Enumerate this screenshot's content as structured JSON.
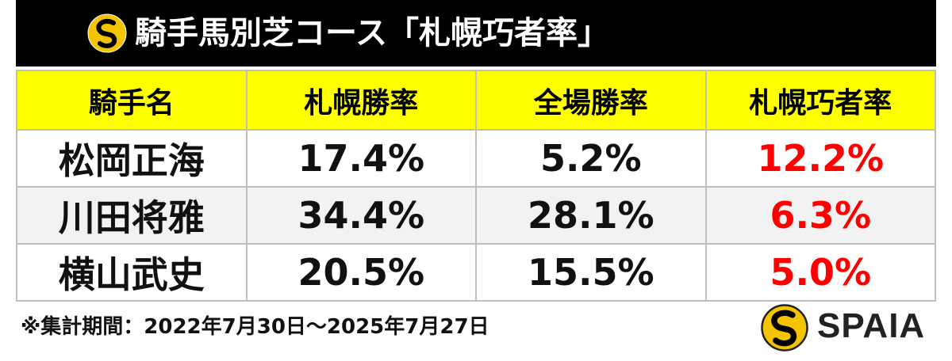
{
  "header": {
    "title": "騎手馬別芝コース「札幌巧者率」"
  },
  "table": {
    "columns": [
      "騎手名",
      "札幌勝率",
      "全場勝率",
      "札幌巧者率"
    ],
    "rows": [
      [
        "松岡正海",
        "17.4%",
        "5.2%",
        "12.2%"
      ],
      [
        "川田将雅",
        "34.4%",
        "28.1%",
        "6.3%"
      ],
      [
        "横山武史",
        "20.5%",
        "15.5%",
        "5.0%"
      ]
    ]
  },
  "footer": {
    "note": "※集計期間：2022年7月30日～2025年7月27日",
    "brand": "SPAIA"
  }
}
